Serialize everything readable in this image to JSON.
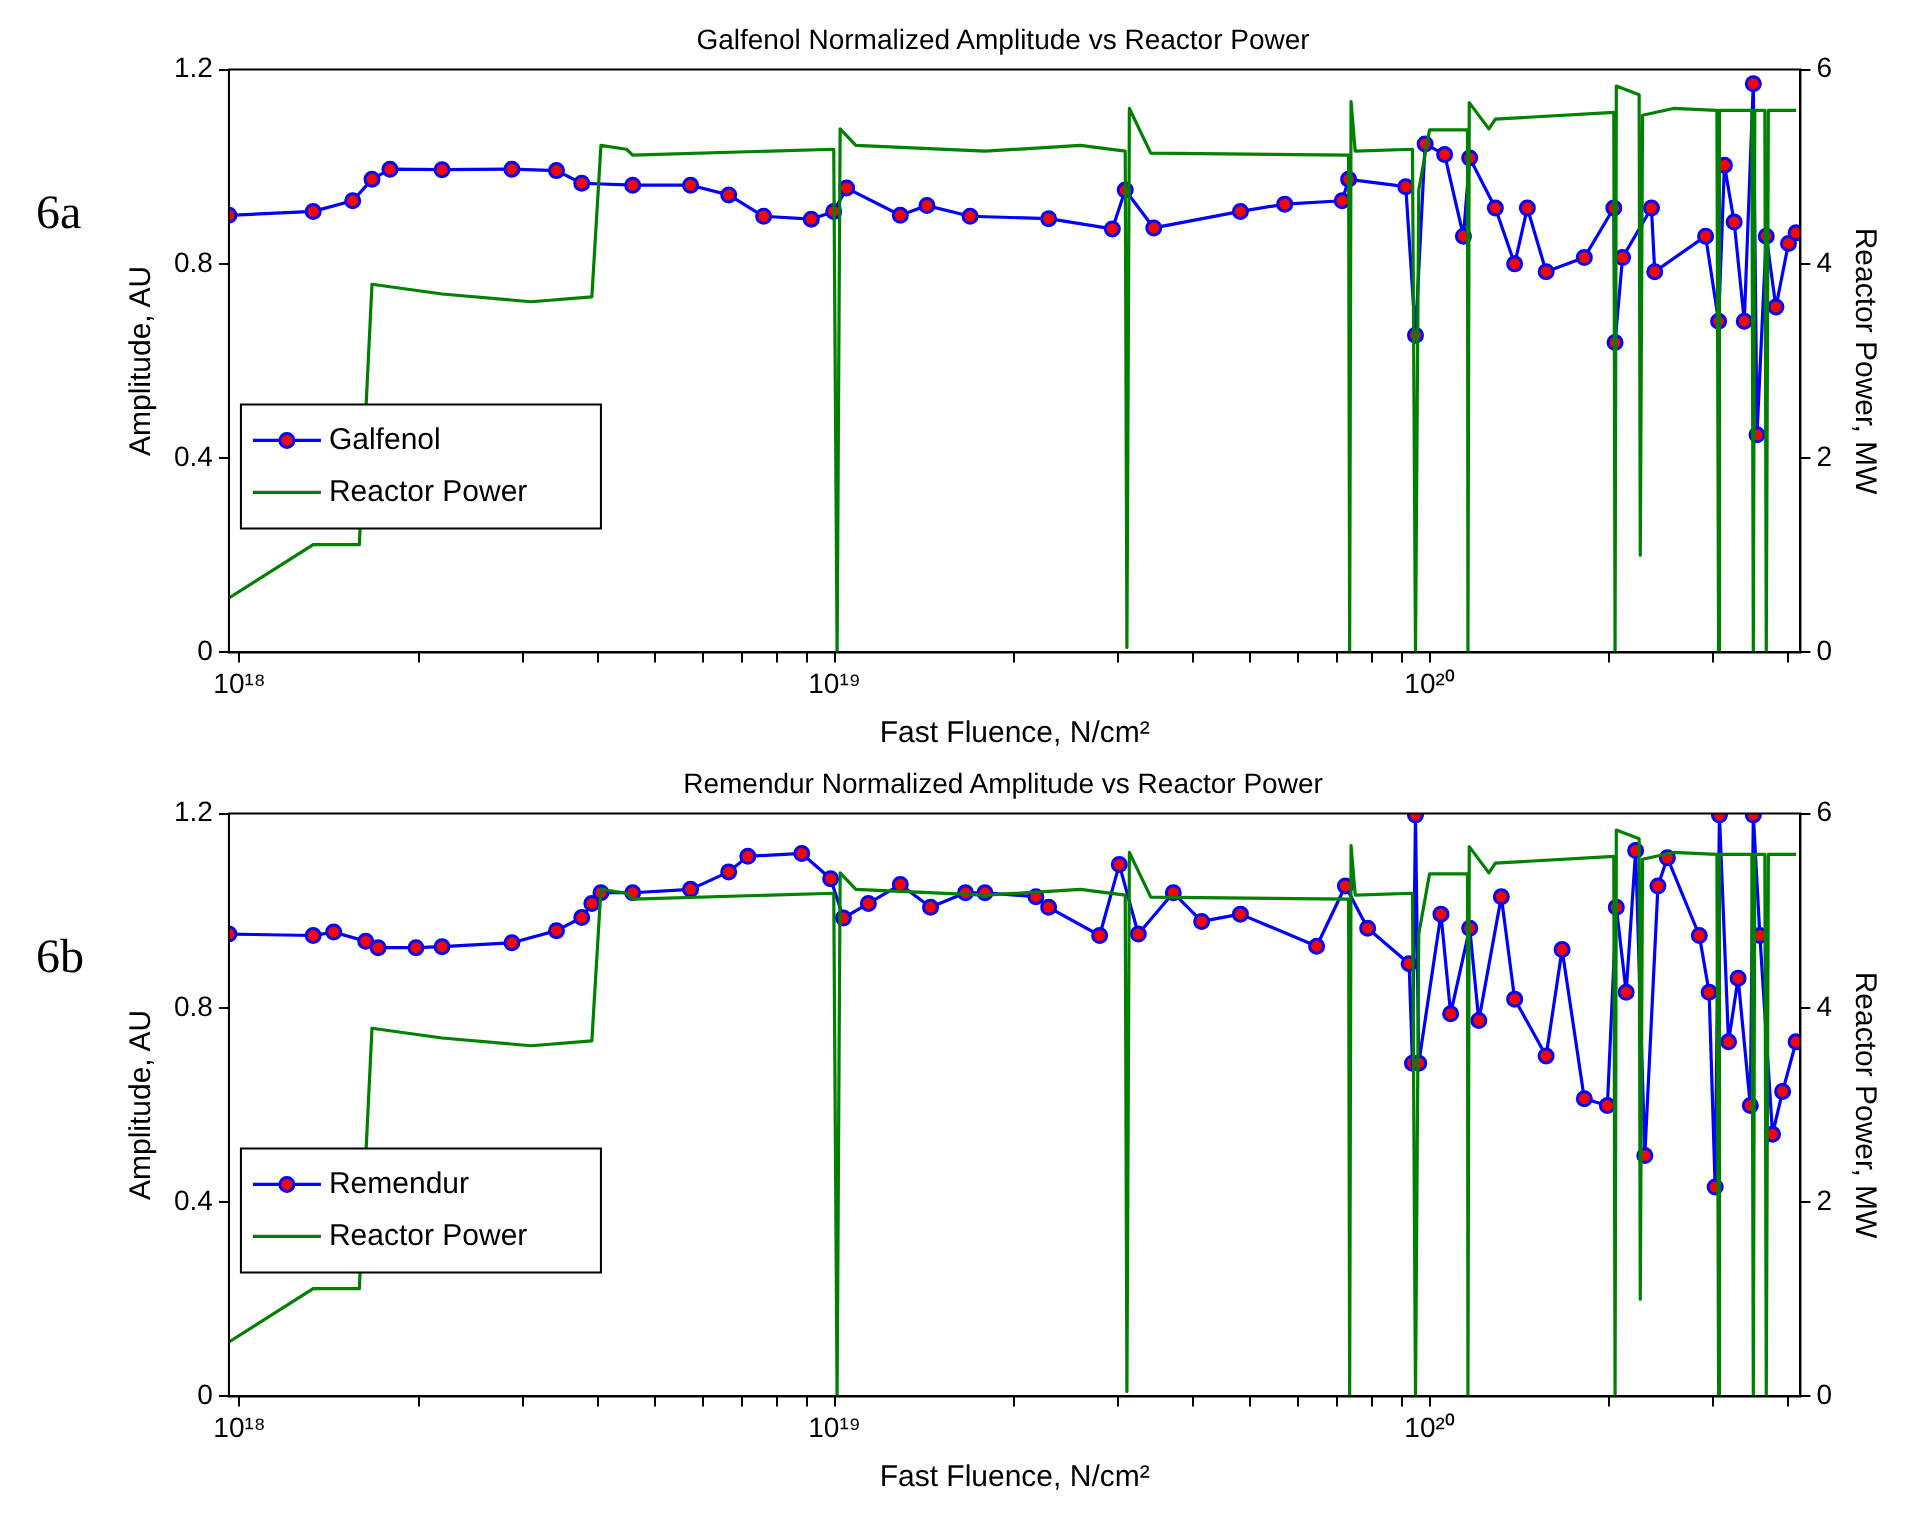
{
  "chart_data": [
    {
      "type": "line",
      "title": "Galfenol Normalized Amplitude vs Reactor Power",
      "xlabel": "Fast Fluence, N/cm²",
      "ylabel": "Amplitude, AU",
      "y2label": "Reactor Power, MW",
      "annotations": [
        "6a"
      ],
      "log": "x",
      "legend": "bottom left",
      "xlim": [
        9.6e+17,
        4.2e+20
      ],
      "xticks": [
        {
          "value": 1e+18,
          "label": "10¹⁸"
        },
        {
          "value": 2e+18,
          "label": null
        },
        {
          "value": 3e+18,
          "label": null
        },
        {
          "value": 4e+18,
          "label": null
        },
        {
          "value": 5e+18,
          "label": null
        },
        {
          "value": 6e+18,
          "label": null
        },
        {
          "value": 7e+18,
          "label": null
        },
        {
          "value": 8e+18,
          "label": null
        },
        {
          "value": 9e+18,
          "label": null
        },
        {
          "value": 1e+19,
          "label": "10¹⁹"
        },
        {
          "value": 2e+19,
          "label": null
        },
        {
          "value": 3e+19,
          "label": null
        },
        {
          "value": 4e+19,
          "label": null
        },
        {
          "value": 5e+19,
          "label": null
        },
        {
          "value": 6e+19,
          "label": null
        },
        {
          "value": 7e+19,
          "label": null
        },
        {
          "value": 8e+19,
          "label": null
        },
        {
          "value": 9e+19,
          "label": null
        },
        {
          "value": 1e+20,
          "label": "10²⁰"
        },
        {
          "value": 2e+20,
          "label": null
        },
        {
          "value": 3e+20,
          "label": null
        },
        {
          "value": 4e+20,
          "label": null
        }
      ],
      "ylim": [
        0,
        1.2
      ],
      "yticks": [
        0,
        0.4,
        0.8,
        1.2
      ],
      "y2lim": [
        0,
        6
      ],
      "y2ticks": [
        0,
        2,
        4,
        6
      ],
      "series": [
        {
          "name": "Galfenol",
          "color": "#0000ff",
          "marker": "circle",
          "x": [
            9.6e+17,
            1.33e+18,
            1.55e+18,
            1.67e+18,
            1.79e+18,
            2.19e+18,
            2.87e+18,
            3.41e+18,
            3.76e+18,
            4.58e+18,
            5.73e+18,
            6.64e+18,
            7.6e+18,
            9.14e+18,
            9.97e+18,
            1.048e+19,
            1.29e+19,
            1.43e+19,
            1.69e+19,
            2.29e+19,
            2.93e+19,
            3.08e+19,
            3.44e+19,
            4.81e+19,
            5.71e+19,
            7.13e+19,
            7.31e+19,
            9.12e+19,
            9.47e+19,
            9.83e+19,
            1.06e+20,
            1.14e+20,
            1.168e+20,
            1.29e+20,
            1.39e+20,
            1.46e+20,
            1.57e+20,
            1.82e+20,
            2.04e+20,
            2.05e+20,
            2.11e+20,
            2.36e+20,
            2.39e+20,
            2.91e+20,
            3.06e+20,
            3.13e+20,
            3.25e+20,
            3.38e+20,
            3.5e+20,
            3.55e+20,
            3.68e+20,
            3.82e+20,
            4.01e+20,
            4.13e+20
          ],
          "values": [
            0.9,
            0.908,
            0.93,
            0.974,
            0.995,
            0.994,
            0.995,
            0.992,
            0.966,
            0.962,
            0.962,
            0.942,
            0.898,
            0.892,
            0.908,
            0.956,
            0.9,
            0.92,
            0.898,
            0.893,
            0.872,
            0.952,
            0.874,
            0.908,
            0.923,
            0.93,
            0.974,
            0.959,
            0.653,
            1.047,
            1.025,
            0.857,
            1.018,
            0.915,
            0.8,
            0.915,
            0.784,
            0.813,
            0.915,
            0.638,
            0.813,
            0.915,
            0.784,
            0.857,
            0.682,
            1.003,
            0.886,
            0.682,
            1.171,
            0.448,
            0.857,
            0.711,
            0.842,
            0.864
          ]
        },
        {
          "name": "Reactor Power",
          "color": "#008000",
          "marker": "none",
          "axis": "y2",
          "x": [
            9.6e+17,
            1.33e+18,
            1.59e+18,
            1.67e+18,
            2.19e+18,
            3.09e+18,
            3.91e+18,
            4.05e+18,
            4.47e+18,
            4.58e+18,
            9.97e+18,
            1.01e+19,
            1.022e+19,
            1.086e+19,
            1.79e+19,
            2.59e+19,
            3.08e+19,
            3.1e+19,
            3.13e+19,
            3.4e+19,
            7.31e+19,
            7.34e+19,
            7.38e+19,
            7.5e+19,
            9.36e+19,
            9.47e+19,
            9.59e+19,
            1e+20,
            1.158e+20,
            1.16e+20,
            1.166e+20,
            1.258e+20,
            1.29e+20,
            2.04e+20,
            2.05e+20,
            2.06e+20,
            2.25e+20,
            2.26e+20,
            2.28e+20,
            2.57e+20,
            3.04e+20,
            3.06e+20,
            3.07e+20,
            3.48e+20,
            3.5e+20,
            3.52e+20,
            3.66e+20,
            3.68e+20,
            3.71e+20,
            4.13e+20
          ],
          "values": [
            0.56,
            1.11,
            1.11,
            3.79,
            3.69,
            3.61,
            3.66,
            5.22,
            5.18,
            5.12,
            5.18,
            0,
            5.39,
            5.22,
            5.16,
            5.22,
            5.16,
            0.05,
            5.6,
            5.14,
            5.12,
            0,
            5.67,
            5.16,
            5.18,
            0,
            4.76,
            5.38,
            5.38,
            0,
            5.66,
            5.39,
            5.49,
            5.56,
            0,
            5.83,
            5.74,
            1,
            5.53,
            5.6,
            5.58,
            0,
            5.58,
            5.58,
            0,
            5.58,
            5.58,
            0,
            5.58,
            5.58
          ]
        }
      ]
    },
    {
      "type": "line",
      "title": "Remendur Normalized Amplitude vs Reactor Power",
      "xlabel": "Fast Fluence, N/cm²",
      "ylabel": "Amplitude, AU",
      "y2label": "Reactor Power, MW",
      "annotations": [
        "6b"
      ],
      "log": "x",
      "legend": "bottom left",
      "xlim": [
        9.6e+17,
        4.2e+20
      ],
      "xticks": [
        {
          "value": 1e+18,
          "label": "10¹⁸"
        },
        {
          "value": 2e+18,
          "label": null
        },
        {
          "value": 3e+18,
          "label": null
        },
        {
          "value": 4e+18,
          "label": null
        },
        {
          "value": 5e+18,
          "label": null
        },
        {
          "value": 6e+18,
          "label": null
        },
        {
          "value": 7e+18,
          "label": null
        },
        {
          "value": 8e+18,
          "label": null
        },
        {
          "value": 9e+18,
          "label": null
        },
        {
          "value": 1e+19,
          "label": "10¹⁹"
        },
        {
          "value": 2e+19,
          "label": null
        },
        {
          "value": 3e+19,
          "label": null
        },
        {
          "value": 4e+19,
          "label": null
        },
        {
          "value": 5e+19,
          "label": null
        },
        {
          "value": 6e+19,
          "label": null
        },
        {
          "value": 7e+19,
          "label": null
        },
        {
          "value": 8e+19,
          "label": null
        },
        {
          "value": 9e+19,
          "label": null
        },
        {
          "value": 1e+20,
          "label": "10²⁰"
        },
        {
          "value": 2e+20,
          "label": null
        },
        {
          "value": 3e+20,
          "label": null
        },
        {
          "value": 4e+20,
          "label": null
        }
      ],
      "ylim": [
        0,
        1.2
      ],
      "yticks": [
        0,
        0.4,
        0.8,
        1.2
      ],
      "y2lim": [
        0,
        6
      ],
      "y2ticks": [
        0,
        2,
        4,
        6
      ],
      "series": [
        {
          "name": "Remendur",
          "color": "#0000ff",
          "marker": "circle",
          "x": [
            9.6e+17,
            1.33e+18,
            1.44e+18,
            1.63e+18,
            1.71e+18,
            1.98e+18,
            2.19e+18,
            2.87e+18,
            3.41e+18,
            3.76e+18,
            3.91e+18,
            4.05e+18,
            4.58e+18,
            5.73e+18,
            6.64e+18,
            7.15e+18,
            8.81e+18,
            9.85e+18,
            1.035e+19,
            1.14e+19,
            1.29e+19,
            1.45e+19,
            1.66e+19,
            1.79e+19,
            2.18e+19,
            2.29e+19,
            2.79e+19,
            3.01e+19,
            3.24e+19,
            3.71e+19,
            4.14e+19,
            4.81e+19,
            6.46e+19,
            7.22e+19,
            7.87e+19,
            9.24e+19,
            9.36e+19,
            9.47e+19,
            9.59e+19,
            1.045e+20,
            1.085e+20,
            1.168e+20,
            1.21e+20,
            1.32e+20,
            1.39e+20,
            1.57e+20,
            1.67e+20,
            1.82e+20,
            1.99e+20,
            2.06e+20,
            2.14e+20,
            2.22e+20,
            2.3e+20,
            2.42e+20,
            2.51e+20,
            2.84e+20,
            2.95e+20,
            3.02e+20,
            3.07e+20,
            3.18e+20,
            3.3e+20,
            3.46e+20,
            3.5e+20,
            3.59e+20,
            3.77e+20,
            3.92e+20,
            4.13e+20
          ],
          "values": [
            0.952,
            0.949,
            0.956,
            0.937,
            0.924,
            0.924,
            0.926,
            0.934,
            0.959,
            0.986,
            1.015,
            1.037,
            1.037,
            1.044,
            1.08,
            1.112,
            1.118,
            1.066,
            0.985,
            1.015,
            1.054,
            1.007,
            1.037,
            1.037,
            1.029,
            1.007,
            0.949,
            1.095,
            0.952,
            1.037,
            0.978,
            0.993,
            0.927,
            1.051,
            0.964,
            0.891,
            0.686,
            1.197,
            0.686,
            0.993,
            0.788,
            0.964,
            0.774,
            1.029,
            0.818,
            0.701,
            0.92,
            0.613,
            0.599,
            1.007,
            0.832,
            1.124,
            0.496,
            1.051,
            1.109,
            0.949,
            0.832,
            0.431,
            1.197,
            0.73,
            0.861,
            0.599,
            1.197,
            0.949,
            0.54,
            0.628,
            0.73
          ]
        },
        {
          "name": "Reactor Power",
          "color": "#008000",
          "marker": "none",
          "axis": "y2",
          "x": [
            9.6e+17,
            1.33e+18,
            1.59e+18,
            1.67e+18,
            2.19e+18,
            3.09e+18,
            3.91e+18,
            4.05e+18,
            4.47e+18,
            4.58e+18,
            9.97e+18,
            1.01e+19,
            1.022e+19,
            1.086e+19,
            1.79e+19,
            2.59e+19,
            3.08e+19,
            3.1e+19,
            3.13e+19,
            3.4e+19,
            7.31e+19,
            7.34e+19,
            7.38e+19,
            7.5e+19,
            9.36e+19,
            9.47e+19,
            9.59e+19,
            1e+20,
            1.158e+20,
            1.16e+20,
            1.166e+20,
            1.258e+20,
            1.29e+20,
            2.04e+20,
            2.05e+20,
            2.06e+20,
            2.25e+20,
            2.26e+20,
            2.28e+20,
            2.57e+20,
            3.04e+20,
            3.06e+20,
            3.07e+20,
            3.48e+20,
            3.5e+20,
            3.52e+20,
            3.66e+20,
            3.68e+20,
            3.71e+20,
            4.13e+20
          ],
          "values": [
            0.56,
            1.11,
            1.11,
            3.79,
            3.69,
            3.61,
            3.66,
            5.22,
            5.18,
            5.12,
            5.18,
            0,
            5.39,
            5.22,
            5.16,
            5.22,
            5.16,
            0.05,
            5.6,
            5.14,
            5.12,
            0,
            5.67,
            5.16,
            5.18,
            0,
            4.76,
            5.38,
            5.38,
            0,
            5.66,
            5.39,
            5.49,
            5.56,
            0,
            5.83,
            5.74,
            1,
            5.53,
            5.6,
            5.58,
            0,
            5.58,
            5.58,
            0,
            5.58,
            5.58,
            0,
            5.58,
            5.58
          ]
        }
      ]
    }
  ]
}
